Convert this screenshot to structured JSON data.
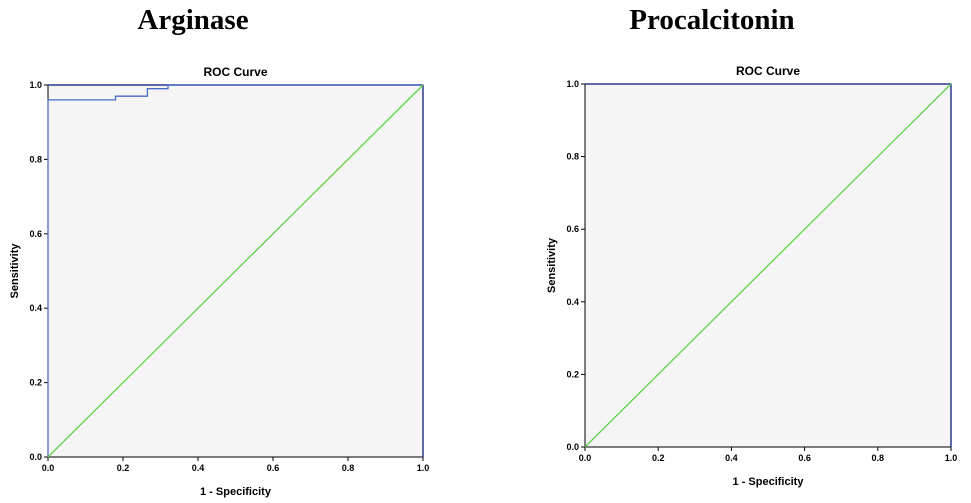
{
  "panels": [
    {
      "title": "Arginase"
    },
    {
      "title": "Procalcitonin"
    }
  ],
  "chart_data": [
    {
      "type": "line",
      "title": "ROC Curve",
      "xlabel": "1 - Specificity",
      "ylabel": "Sensitivity",
      "xlim": [
        0,
        1
      ],
      "ylim": [
        0,
        1
      ],
      "xticks": [
        "0.0",
        "0.2",
        "0.4",
        "0.6",
        "0.8",
        "1.0"
      ],
      "yticks": [
        "0.0",
        "0.2",
        "0.4",
        "0.6",
        "0.8",
        "1.0"
      ],
      "grid": false,
      "colors": {
        "roc": "#4a6cc4",
        "reference": "#5fd44a",
        "plot_bg": "#f5f5f5",
        "frame": "#2b3a8a"
      },
      "series": [
        {
          "x": [
            0.0,
            0.0,
            0.18,
            0.18,
            0.265,
            0.265,
            0.32,
            0.32,
            1.0
          ],
          "y": [
            0.0,
            0.96,
            0.96,
            0.97,
            0.97,
            0.99,
            0.99,
            1.0,
            1.0
          ]
        },
        {
          "x": [
            0.0,
            1.0
          ],
          "y": [
            0.0,
            1.0
          ]
        }
      ]
    },
    {
      "type": "line",
      "title": "ROC Curve",
      "xlabel": "1 - Specificity",
      "ylabel": "Sensitivity",
      "xlim": [
        0,
        1
      ],
      "ylim": [
        0,
        1
      ],
      "xticks": [
        "0.0",
        "0.2",
        "0.4",
        "0.6",
        "0.8",
        "1.0"
      ],
      "yticks": [
        "0.0",
        "0.2",
        "0.4",
        "0.6",
        "0.8",
        "1.0"
      ],
      "grid": false,
      "colors": {
        "roc": "#4a6cc4",
        "reference": "#5fd44a",
        "plot_bg": "#f5f5f5",
        "frame": "#2b3a8a"
      },
      "series": [
        {
          "x": [
            0.0,
            1.0
          ],
          "y": [
            0.0,
            1.0
          ]
        }
      ]
    }
  ]
}
